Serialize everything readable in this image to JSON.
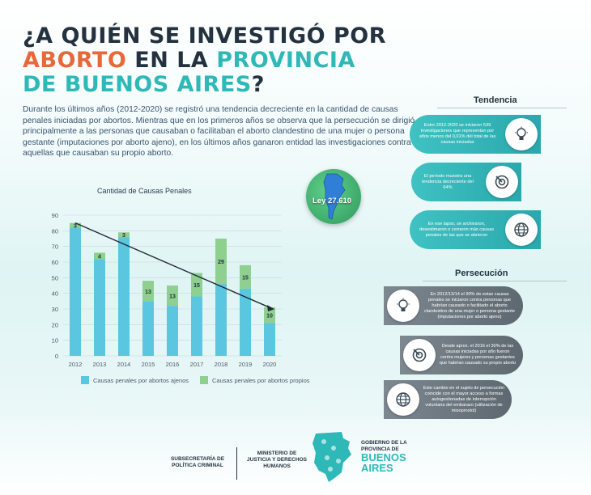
{
  "title": {
    "line1": "¿A QUIÉN SE INVESTIGÓ POR",
    "line2_orange": "ABORTO",
    "line2_dark": " EN LA ",
    "line2_teal": "PROVINCIA",
    "line3_teal": "DE BUENOS AIRES",
    "line3_dark": "?"
  },
  "intro": "Durante los últimos años (2012-2020) se registró una tendencia decreciente en la cantidad de causas penales iniciadas por abortos. Mientras que en los primeros años se observa que la persecución se dirigió principalmente a las personas que causaban o facilitaban el aborto clandestino de una mujer o persona gestante (imputaciones por aborto ajeno), en los últimos años ganaron entidad las investigaciones contra aquellas que causaban su propio aborto.",
  "chart_data": {
    "type": "bar",
    "title": "Cantidad de Causas Penales",
    "categories": [
      "2012",
      "2013",
      "2014",
      "2015",
      "2016",
      "2017",
      "2018",
      "2019",
      "2020"
    ],
    "series": [
      {
        "name": "Causas  penales por abortos ajenos",
        "values": [
          82,
          62,
          76,
          35,
          32,
          38,
          46,
          43,
          21
        ]
      },
      {
        "name": "Causas penales por abortos propios",
        "values": [
          3,
          4,
          3,
          13,
          13,
          15,
          29,
          15,
          10
        ]
      }
    ],
    "labels": [
      "3",
      "4",
      "3",
      "13",
      "13",
      "15",
      "29",
      "15",
      "10"
    ],
    "ylim": [
      0,
      90
    ],
    "yticks": [
      0,
      10,
      20,
      30,
      40,
      50,
      60,
      70,
      80,
      90
    ],
    "stacked": true,
    "trendline": true,
    "grid": true,
    "colors": {
      "ajenos": "#5bc6e0",
      "propios": "#8fcf8f"
    }
  },
  "badge": {
    "label": "Ley 27.610"
  },
  "tendencia": {
    "heading": "Tendencia",
    "items": [
      {
        "text": "Entre 2012-2020 se iniciaron 539 investigaciones que representan por años menos del 0,01% del total de las causas iniciadas",
        "icon": "lightbulb-icon"
      },
      {
        "text": "El período muestra una tendencia decreciente del 64%",
        "icon": "target-icon"
      },
      {
        "text": "En ese lapso, se archivaron, desestimaron o cerraron más causas penales de las que se abrieron",
        "icon": "globe-icon"
      }
    ]
  },
  "persecucion": {
    "heading": "Persecución",
    "items": [
      {
        "text": "En 2012/13/14 el 90% de estas causas penales se iniciaron contra personas que habrían causado o facilitado el aborto clandestino de una mujer o persona gestante (imputaciones por aborto ajeno)",
        "icon": "lightbulb-icon"
      },
      {
        "text": "Desde aprox. el 2016 el 30% de las causas iniciadas por año fueron contra mujeres y personas gestantes que habrían causado su propio aborto",
        "icon": "target-icon"
      },
      {
        "text": "Este cambio en el sujeto de persecución coincide con el mayor acceso a formas autogestionadas de interrupción voluntaria del embarazo (utilización de misoprostol)",
        "icon": "globe-icon"
      }
    ]
  },
  "footer": {
    "sub": "SUBSECRETARÍA DE\nPOLÍTICA CRIMINAL",
    "min": "MINISTERIO DE\nJUSTICIA Y DERECHOS\nHUMANOS",
    "gob": "GOBIERNO DE LA\nPROVINCIA DE",
    "ba1": "BUENOS",
    "ba2": "AIRES"
  }
}
